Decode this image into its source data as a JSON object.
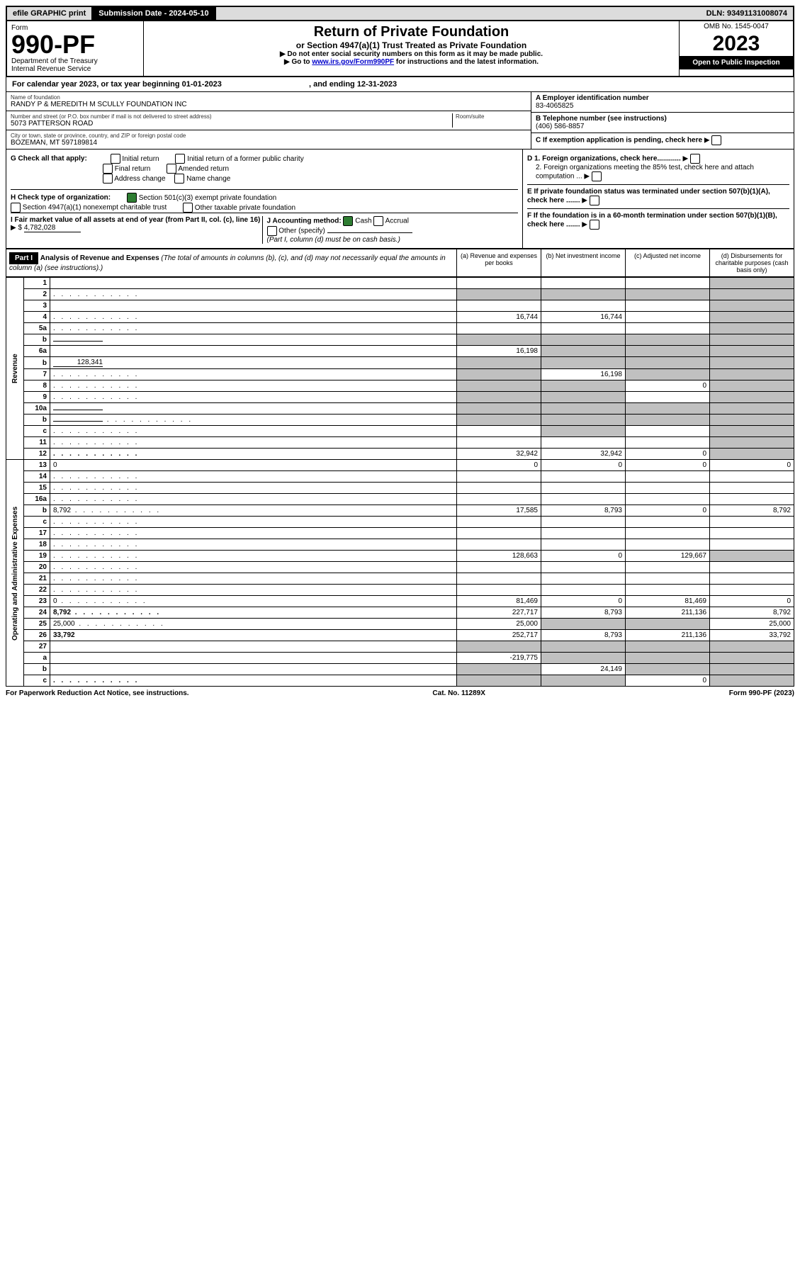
{
  "topbar": {
    "efile": "efile GRAPHIC print",
    "sub_label": "Submission Date - 2024-05-10",
    "dln": "DLN: 93491131008074"
  },
  "header": {
    "form_label": "Form",
    "form_number": "990-PF",
    "dept": "Department of the Treasury",
    "irs": "Internal Revenue Service",
    "title": "Return of Private Foundation",
    "subtitle": "or Section 4947(a)(1) Trust Treated as Private Foundation",
    "note1": "▶ Do not enter social security numbers on this form as it may be made public.",
    "note2_pre": "▶ Go to ",
    "note2_link": "www.irs.gov/Form990PF",
    "note2_post": " for instructions and the latest information.",
    "omb": "OMB No. 1545-0047",
    "year": "2023",
    "open": "Open to Public Inspection"
  },
  "cal": {
    "line_a": "For calendar year 2023, or tax year beginning 01-01-2023",
    "line_b": ", and ending 12-31-2023"
  },
  "id": {
    "name_label": "Name of foundation",
    "name": "RANDY P & MEREDITH M SCULLY FOUNDATION INC",
    "addr_label": "Number and street (or P.O. box number if mail is not delivered to street address)",
    "room_label": "Room/suite",
    "addr": "5073 PATTERSON ROAD",
    "city_label": "City or town, state or province, country, and ZIP or foreign postal code",
    "city": "BOZEMAN, MT  597189814",
    "ein_label": "A Employer identification number",
    "ein": "83-4065825",
    "tel_label": "B Telephone number (see instructions)",
    "tel": "(406) 586-8857",
    "c_label": "C If exemption application is pending, check here",
    "d1": "D 1. Foreign organizations, check here............",
    "d2": "2. Foreign organizations meeting the 85% test, check here and attach computation ...",
    "e": "E  If private foundation status was terminated under section 507(b)(1)(A), check here .......",
    "f": "F  If the foundation is in a 60-month termination under section 507(b)(1)(B), check here .......",
    "g_label": "G Check all that apply:",
    "g_opts": [
      "Initial return",
      "Initial return of a former public charity",
      "Final return",
      "Amended return",
      "Address change",
      "Name change"
    ],
    "h_label": "H Check type of organization:",
    "h1": "Section 501(c)(3) exempt private foundation",
    "h2": "Section 4947(a)(1) nonexempt charitable trust",
    "h3": "Other taxable private foundation",
    "i_label": "I Fair market value of all assets at end of year (from Part II, col. (c), line 16)",
    "i_val": "4,782,028",
    "j_label": "J Accounting method:",
    "j_cash": "Cash",
    "j_accr": "Accrual",
    "j_other": "Other (specify)",
    "j_note": "(Part I, column (d) must be on cash basis.)"
  },
  "part1": {
    "label": "Part I",
    "title": "Analysis of Revenue and Expenses",
    "title_note": "(The total of amounts in columns (b), (c), and (d) may not necessarily equal the amounts in column (a) (see instructions).)",
    "col_a": "(a)  Revenue and expenses per books",
    "col_b": "(b)  Net investment income",
    "col_c": "(c)  Adjusted net income",
    "col_d": "(d)  Disbursements for charitable purposes (cash basis only)"
  },
  "sections": {
    "revenue": "Revenue",
    "opex": "Operating and Administrative Expenses"
  },
  "rows": [
    {
      "n": "1",
      "d": "",
      "a": "",
      "b": "",
      "c": "",
      "grey": [
        "d"
      ]
    },
    {
      "n": "2",
      "d": "",
      "dots": true,
      "a": "",
      "b": "",
      "c": "",
      "grey": [
        "a",
        "b",
        "c",
        "d"
      ]
    },
    {
      "n": "3",
      "d": "",
      "a": "",
      "b": "",
      "c": "",
      "grey": [
        "d"
      ]
    },
    {
      "n": "4",
      "d": "",
      "dots": true,
      "a": "16,744",
      "b": "16,744",
      "c": "",
      "grey": [
        "d"
      ]
    },
    {
      "n": "5a",
      "d": "",
      "dots": true,
      "a": "",
      "b": "",
      "c": "",
      "grey": [
        "d"
      ]
    },
    {
      "n": "b",
      "d": "",
      "inline": "",
      "a": "",
      "b": "",
      "c": "",
      "grey": [
        "a",
        "b",
        "c",
        "d"
      ]
    },
    {
      "n": "6a",
      "d": "",
      "a": "16,198",
      "b": "",
      "c": "",
      "grey": [
        "b",
        "c",
        "d"
      ]
    },
    {
      "n": "b",
      "d": "",
      "inline": "128,341",
      "a": "",
      "b": "",
      "c": "",
      "grey": [
        "a",
        "b",
        "c",
        "d"
      ]
    },
    {
      "n": "7",
      "d": "",
      "dots": true,
      "a": "",
      "b": "16,198",
      "c": "",
      "grey": [
        "a",
        "c",
        "d"
      ]
    },
    {
      "n": "8",
      "d": "",
      "dots": true,
      "a": "",
      "b": "",
      "c": "0",
      "grey": [
        "a",
        "b",
        "d"
      ]
    },
    {
      "n": "9",
      "d": "",
      "dots": true,
      "a": "",
      "b": "",
      "c": "",
      "grey": [
        "a",
        "b",
        "d"
      ]
    },
    {
      "n": "10a",
      "d": "",
      "inline": "",
      "a": "",
      "b": "",
      "c": "",
      "grey": [
        "a",
        "b",
        "c",
        "d"
      ]
    },
    {
      "n": "b",
      "d": "",
      "dots": true,
      "inline": "",
      "a": "",
      "b": "",
      "c": "",
      "grey": [
        "a",
        "b",
        "c",
        "d"
      ]
    },
    {
      "n": "c",
      "d": "",
      "dots": true,
      "a": "",
      "b": "",
      "c": "",
      "grey": [
        "b",
        "d"
      ]
    },
    {
      "n": "11",
      "d": "",
      "dots": true,
      "a": "",
      "b": "",
      "c": "",
      "grey": [
        "d"
      ]
    },
    {
      "n": "12",
      "d": "",
      "dots": true,
      "bold": true,
      "a": "32,942",
      "b": "32,942",
      "c": "0",
      "grey": [
        "d"
      ]
    },
    {
      "n": "13",
      "d": "0",
      "a": "0",
      "b": "0",
      "c": "0"
    },
    {
      "n": "14",
      "d": "",
      "dots": true,
      "a": "",
      "b": "",
      "c": ""
    },
    {
      "n": "15",
      "d": "",
      "dots": true,
      "a": "",
      "b": "",
      "c": ""
    },
    {
      "n": "16a",
      "d": "",
      "dots": true,
      "a": "",
      "b": "",
      "c": ""
    },
    {
      "n": "b",
      "d": "8,792",
      "dots": true,
      "a": "17,585",
      "b": "8,793",
      "c": "0"
    },
    {
      "n": "c",
      "d": "",
      "dots": true,
      "a": "",
      "b": "",
      "c": ""
    },
    {
      "n": "17",
      "d": "",
      "dots": true,
      "a": "",
      "b": "",
      "c": ""
    },
    {
      "n": "18",
      "d": "",
      "dots": true,
      "a": "",
      "b": "",
      "c": ""
    },
    {
      "n": "19",
      "d": "",
      "dots": true,
      "a": "128,663",
      "b": "0",
      "c": "129,667",
      "grey": [
        "d"
      ]
    },
    {
      "n": "20",
      "d": "",
      "dots": true,
      "a": "",
      "b": "",
      "c": ""
    },
    {
      "n": "21",
      "d": "",
      "dots": true,
      "a": "",
      "b": "",
      "c": ""
    },
    {
      "n": "22",
      "d": "",
      "dots": true,
      "a": "",
      "b": "",
      "c": ""
    },
    {
      "n": "23",
      "d": "0",
      "dots": true,
      "a": "81,469",
      "b": "0",
      "c": "81,469"
    },
    {
      "n": "24",
      "d": "8,792",
      "dots": true,
      "bold": true,
      "a": "227,717",
      "b": "8,793",
      "c": "211,136"
    },
    {
      "n": "25",
      "d": "25,000",
      "dots": true,
      "a": "25,000",
      "b": "",
      "c": "",
      "grey": [
        "b",
        "c"
      ]
    },
    {
      "n": "26",
      "d": "33,792",
      "bold": true,
      "a": "252,717",
      "b": "8,793",
      "c": "211,136"
    },
    {
      "n": "27",
      "d": "",
      "a": "",
      "b": "",
      "c": "",
      "grey": [
        "a",
        "b",
        "c",
        "d"
      ]
    },
    {
      "n": "a",
      "d": "",
      "bold": true,
      "a": "-219,775",
      "b": "",
      "c": "",
      "grey": [
        "b",
        "c",
        "d"
      ]
    },
    {
      "n": "b",
      "d": "",
      "bold": true,
      "a": "",
      "b": "24,149",
      "c": "",
      "grey": [
        "a",
        "c",
        "d"
      ]
    },
    {
      "n": "c",
      "d": "",
      "dots": true,
      "bold": true,
      "a": "",
      "b": "",
      "c": "0",
      "grey": [
        "a",
        "b",
        "d"
      ]
    }
  ],
  "footer": {
    "left": "For Paperwork Reduction Act Notice, see instructions.",
    "mid": "Cat. No. 11289X",
    "right": "Form 990-PF (2023)"
  }
}
